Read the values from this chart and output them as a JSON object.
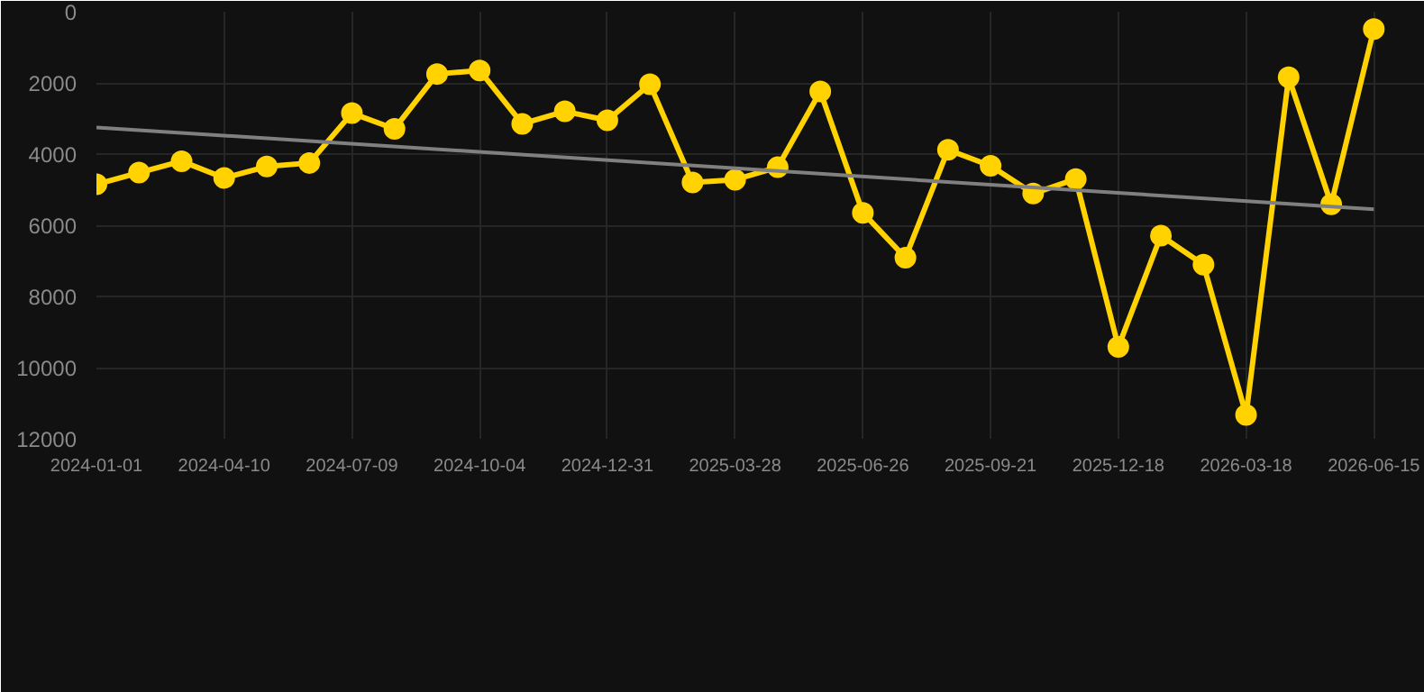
{
  "chart_data": {
    "type": "line",
    "categories": [
      "2024-01-01",
      null,
      null,
      "2024-04-10",
      null,
      null,
      "2024-07-09",
      null,
      null,
      "2024-10-04",
      null,
      null,
      "2024-12-31",
      null,
      null,
      "2025-03-28",
      null,
      null,
      "2025-06-26",
      null,
      null,
      "2025-09-21",
      null,
      null,
      "2025-12-18",
      null,
      null,
      "2026-03-18",
      null,
      null,
      "2026-06-15"
    ],
    "series": [
      {
        "color": "#ffd200",
        "marker": "circle",
        "values": [
          4850,
          4520,
          4200,
          4670,
          4350,
          4250,
          2850,
          3290,
          1750,
          1650,
          3150,
          2800,
          3050,
          2040,
          4800,
          4720,
          4370,
          2240,
          5650,
          6910,
          3880,
          4330,
          5110,
          4700,
          9420,
          6290,
          7110,
          11330,
          1840,
          5410,
          490
        ]
      },
      {
        "type": "line",
        "color": "#808080",
        "marker": "none",
        "values": [
          3250,
          null,
          null,
          null,
          null,
          null,
          null,
          null,
          null,
          null,
          null,
          null,
          null,
          null,
          null,
          null,
          null,
          null,
          null,
          null,
          null,
          null,
          null,
          null,
          null,
          null,
          null,
          null,
          null,
          null,
          5550
        ]
      }
    ],
    "ylim": [
      12000,
      0
    ],
    "yticks": [
      0,
      2000,
      4000,
      6000,
      8000,
      10000,
      12000
    ],
    "grid": true
  }
}
